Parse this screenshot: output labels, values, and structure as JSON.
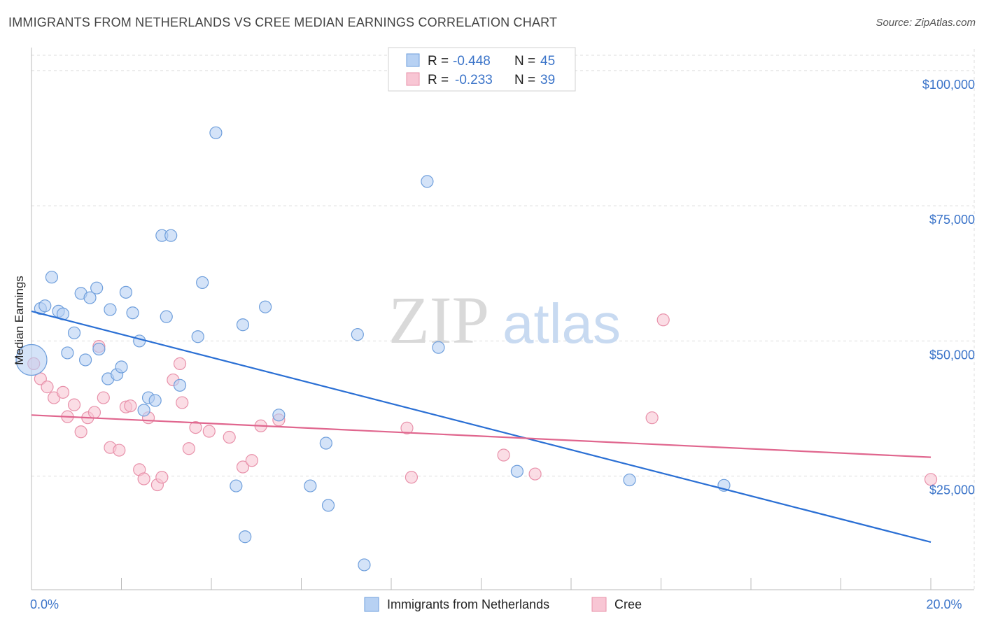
{
  "header": {
    "title": "IMMIGRANTS FROM NETHERLANDS VS CREE MEDIAN EARNINGS CORRELATION CHART",
    "source": "Source: ZipAtlas.com"
  },
  "watermark": {
    "zip": "ZIP",
    "atlas": "atlas"
  },
  "colors": {
    "blue_fill": "#b7d1f3",
    "blue_stroke": "#6f9fdc",
    "blue_line": "#2a6fd4",
    "pink_fill": "#f8c6d4",
    "pink_stroke": "#e891aa",
    "pink_line": "#e0668e",
    "axis_text": "#3b74c9",
    "grid": "#dddddd"
  },
  "legend": {
    "rows": [
      {
        "r_label": "R =",
        "r_value": "-0.448",
        "n_label": "N =",
        "n_value": "45"
      },
      {
        "r_label": "R =",
        "r_value": "-0.233",
        "n_label": "N =",
        "n_value": "39"
      }
    ]
  },
  "chart_data": {
    "type": "scatter",
    "xlabel": "",
    "ylabel": "Median Earnings",
    "xlim": [
      0,
      20
    ],
    "ylim": [
      4000,
      104000
    ],
    "x_tick_labels": [
      {
        "value": 0,
        "label": "0.0%"
      },
      {
        "value": 20,
        "label": "20.0%"
      }
    ],
    "y_ticks": [
      {
        "value": 25000,
        "label": "$25,000"
      },
      {
        "value": 50000,
        "label": "$50,000"
      },
      {
        "value": 75000,
        "label": "$75,000"
      },
      {
        "value": 100000,
        "label": "$100,000"
      }
    ],
    "grid": true,
    "legend_position": "top-center",
    "series": [
      {
        "name": "Immigrants from Netherlands",
        "color": "blue",
        "trend": {
          "x": [
            0,
            20
          ],
          "y": [
            55500,
            12800
          ]
        },
        "points": [
          {
            "x": 0.0,
            "y": 46500,
            "big": true
          },
          {
            "x": 0.2,
            "y": 56000
          },
          {
            "x": 0.3,
            "y": 56500
          },
          {
            "x": 0.45,
            "y": 61800
          },
          {
            "x": 0.6,
            "y": 55500
          },
          {
            "x": 0.7,
            "y": 55000
          },
          {
            "x": 0.8,
            "y": 47800
          },
          {
            "x": 0.95,
            "y": 51500
          },
          {
            "x": 1.1,
            "y": 58800
          },
          {
            "x": 1.2,
            "y": 46500
          },
          {
            "x": 1.3,
            "y": 58000
          },
          {
            "x": 1.45,
            "y": 59800
          },
          {
            "x": 1.5,
            "y": 48500
          },
          {
            "x": 1.7,
            "y": 43000
          },
          {
            "x": 1.75,
            "y": 55800
          },
          {
            "x": 1.9,
            "y": 43800
          },
          {
            "x": 2.0,
            "y": 45200
          },
          {
            "x": 2.1,
            "y": 59000
          },
          {
            "x": 2.25,
            "y": 55200
          },
          {
            "x": 2.4,
            "y": 50000
          },
          {
            "x": 2.5,
            "y": 37200
          },
          {
            "x": 2.6,
            "y": 39500
          },
          {
            "x": 2.75,
            "y": 39000
          },
          {
            "x": 2.9,
            "y": 69500
          },
          {
            "x": 3.0,
            "y": 54500
          },
          {
            "x": 3.1,
            "y": 69500
          },
          {
            "x": 3.3,
            "y": 41800
          },
          {
            "x": 3.7,
            "y": 50800
          },
          {
            "x": 3.8,
            "y": 60800
          },
          {
            "x": 4.1,
            "y": 88500
          },
          {
            "x": 4.55,
            "y": 23200
          },
          {
            "x": 4.7,
            "y": 53000
          },
          {
            "x": 4.75,
            "y": 13800
          },
          {
            "x": 5.2,
            "y": 56300
          },
          {
            "x": 5.5,
            "y": 36300
          },
          {
            "x": 6.2,
            "y": 23200
          },
          {
            "x": 6.55,
            "y": 31100
          },
          {
            "x": 6.6,
            "y": 19600
          },
          {
            "x": 7.25,
            "y": 51200
          },
          {
            "x": 7.4,
            "y": 8600
          },
          {
            "x": 8.8,
            "y": 79500
          },
          {
            "x": 9.05,
            "y": 48800
          },
          {
            "x": 10.8,
            "y": 25900
          },
          {
            "x": 13.3,
            "y": 24300
          },
          {
            "x": 15.4,
            "y": 23300
          }
        ]
      },
      {
        "name": "Cree",
        "color": "pink",
        "trend": {
          "x": [
            0,
            20
          ],
          "y": [
            36300,
            28500
          ]
        },
        "points": [
          {
            "x": 0.05,
            "y": 45800
          },
          {
            "x": 0.2,
            "y": 43000
          },
          {
            "x": 0.35,
            "y": 41500
          },
          {
            "x": 0.5,
            "y": 39500
          },
          {
            "x": 0.7,
            "y": 40500
          },
          {
            "x": 0.8,
            "y": 36000
          },
          {
            "x": 0.95,
            "y": 38200
          },
          {
            "x": 1.1,
            "y": 33200
          },
          {
            "x": 1.25,
            "y": 35800
          },
          {
            "x": 1.4,
            "y": 36800
          },
          {
            "x": 1.5,
            "y": 49000
          },
          {
            "x": 1.6,
            "y": 39500
          },
          {
            "x": 1.75,
            "y": 30300
          },
          {
            "x": 1.95,
            "y": 29800
          },
          {
            "x": 2.1,
            "y": 37800
          },
          {
            "x": 2.2,
            "y": 38000
          },
          {
            "x": 2.4,
            "y": 26200
          },
          {
            "x": 2.5,
            "y": 24500
          },
          {
            "x": 2.6,
            "y": 35800
          },
          {
            "x": 2.8,
            "y": 23400
          },
          {
            "x": 2.9,
            "y": 24800
          },
          {
            "x": 3.15,
            "y": 42800
          },
          {
            "x": 3.3,
            "y": 45800
          },
          {
            "x": 3.35,
            "y": 38600
          },
          {
            "x": 3.5,
            "y": 30100
          },
          {
            "x": 3.65,
            "y": 34000
          },
          {
            "x": 3.95,
            "y": 33300
          },
          {
            "x": 4.4,
            "y": 32200
          },
          {
            "x": 4.7,
            "y": 26700
          },
          {
            "x": 4.9,
            "y": 27900
          },
          {
            "x": 5.1,
            "y": 34300
          },
          {
            "x": 5.5,
            "y": 35400
          },
          {
            "x": 8.35,
            "y": 33900
          },
          {
            "x": 8.45,
            "y": 24800
          },
          {
            "x": 10.5,
            "y": 28900
          },
          {
            "x": 11.2,
            "y": 25400
          },
          {
            "x": 13.8,
            "y": 35800
          },
          {
            "x": 14.05,
            "y": 53900
          },
          {
            "x": 20.0,
            "y": 24400
          }
        ]
      }
    ]
  }
}
